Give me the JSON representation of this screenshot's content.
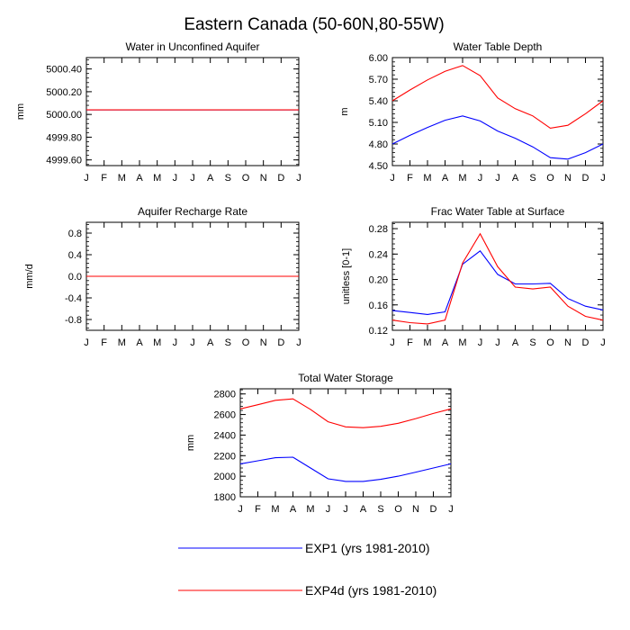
{
  "figure": {
    "title": "Eastern Canada (50-60N,80-55W)"
  },
  "colors": {
    "exp1": "#0000ff",
    "exp4d": "#ff0000"
  },
  "legend": [
    {
      "label": "EXP1 (yrs 1981-2010)",
      "color": "#0000ff"
    },
    {
      "label": "EXP4d (yrs 1981-2010)",
      "color": "#ff0000"
    }
  ],
  "chart_data": [
    {
      "type": "line",
      "title": "Water in Unconfined Aquifer",
      "ylabel": "mm",
      "ylim": [
        4999.55,
        5000.5
      ],
      "yticks": [
        5000.4,
        5000.2,
        5000.0,
        4999.8,
        4999.6
      ],
      "ytick_labels": [
        "5000.40",
        "5000.20",
        "5000.00",
        "4999.80",
        "4999.60"
      ],
      "x_labels": [
        "J",
        "F",
        "M",
        "A",
        "M",
        "J",
        "J",
        "A",
        "S",
        "O",
        "N",
        "D",
        "J"
      ],
      "series": [
        {
          "name": "EXP1 (yrs 1981-2010)",
          "values": [
            5000.04,
            5000.04,
            5000.04,
            5000.04,
            5000.04,
            5000.04,
            5000.04,
            5000.04,
            5000.04,
            5000.04,
            5000.04,
            5000.04,
            5000.04
          ]
        },
        {
          "name": "EXP4d (yrs 1981-2010)",
          "values": [
            5000.04,
            5000.04,
            5000.04,
            5000.04,
            5000.04,
            5000.04,
            5000.04,
            5000.04,
            5000.04,
            5000.04,
            5000.04,
            5000.04,
            5000.04
          ]
        }
      ]
    },
    {
      "type": "line",
      "title": "Water Table Depth",
      "ylabel": "m",
      "ylim": [
        4.5,
        6.0
      ],
      "yticks": [
        6.0,
        5.7,
        5.4,
        5.1,
        4.8,
        4.5
      ],
      "ytick_labels": [
        "6.00",
        "5.70",
        "5.40",
        "5.10",
        "4.80",
        "4.50"
      ],
      "x_labels": [
        "J",
        "F",
        "M",
        "A",
        "M",
        "J",
        "J",
        "A",
        "S",
        "O",
        "N",
        "D",
        "J"
      ],
      "series": [
        {
          "name": "EXP1 (yrs 1981-2010)",
          "values": [
            4.8,
            4.92,
            5.03,
            5.13,
            5.19,
            5.12,
            4.98,
            4.88,
            4.76,
            4.61,
            4.59,
            4.68,
            4.8
          ]
        },
        {
          "name": "EXP4d (yrs 1981-2010)",
          "values": [
            5.4,
            5.55,
            5.69,
            5.81,
            5.89,
            5.75,
            5.44,
            5.29,
            5.19,
            5.02,
            5.06,
            5.22,
            5.4
          ]
        }
      ]
    },
    {
      "type": "line",
      "title": "Aquifer Recharge Rate",
      "ylabel": "mm/d",
      "ylim": [
        -1.0,
        1.0
      ],
      "yticks": [
        0.8,
        0.4,
        0.0,
        -0.4,
        -0.8
      ],
      "ytick_labels": [
        "0.8",
        "0.4",
        "0.0",
        "-0.4",
        "-0.8"
      ],
      "x_labels": [
        "J",
        "F",
        "M",
        "A",
        "M",
        "J",
        "J",
        "A",
        "S",
        "O",
        "N",
        "D",
        "J"
      ],
      "series": [
        {
          "name": "EXP1 (yrs 1981-2010)",
          "values": [
            0,
            0,
            0,
            0,
            0,
            0,
            0,
            0,
            0,
            0,
            0,
            0,
            0
          ]
        },
        {
          "name": "EXP4d (yrs 1981-2010)",
          "values": [
            0,
            0,
            0,
            0,
            0,
            0,
            0,
            0,
            0,
            0,
            0,
            0,
            0
          ]
        }
      ]
    },
    {
      "type": "line",
      "title": "Frac Water Table at Surface",
      "ylabel": "unitless [0-1]",
      "ylim": [
        0.12,
        0.29
      ],
      "yticks": [
        0.28,
        0.24,
        0.2,
        0.16,
        0.12
      ],
      "ytick_labels": [
        "0.28",
        "0.24",
        "0.20",
        "0.16",
        "0.12"
      ],
      "x_labels": [
        "J",
        "F",
        "M",
        "A",
        "M",
        "J",
        "J",
        "A",
        "S",
        "O",
        "N",
        "D",
        "J"
      ],
      "series": [
        {
          "name": "EXP1 (yrs 1981-2010)",
          "values": [
            0.151,
            0.148,
            0.145,
            0.149,
            0.224,
            0.245,
            0.208,
            0.193,
            0.193,
            0.194,
            0.17,
            0.158,
            0.152
          ]
        },
        {
          "name": "EXP4d (yrs 1981-2010)",
          "values": [
            0.136,
            0.132,
            0.13,
            0.136,
            0.226,
            0.272,
            0.22,
            0.188,
            0.185,
            0.188,
            0.158,
            0.142,
            0.136
          ]
        }
      ]
    },
    {
      "type": "line",
      "title": "Total Water Storage",
      "ylabel": "mm",
      "ylim": [
        1800,
        2850
      ],
      "yticks": [
        2800,
        2600,
        2400,
        2200,
        2000,
        1800
      ],
      "ytick_labels": [
        "2800",
        "2600",
        "2400",
        "2200",
        "2000",
        "1800"
      ],
      "x_labels": [
        "J",
        "F",
        "M",
        "A",
        "M",
        "J",
        "J",
        "A",
        "S",
        "O",
        "N",
        "D",
        "J"
      ],
      "series": [
        {
          "name": "EXP1 (yrs 1981-2010)",
          "values": [
            2120,
            2150,
            2180,
            2185,
            2080,
            1975,
            1950,
            1950,
            1970,
            2000,
            2040,
            2080,
            2120
          ]
        },
        {
          "name": "EXP4d (yrs 1981-2010)",
          "values": [
            2655,
            2695,
            2738,
            2752,
            2650,
            2530,
            2480,
            2472,
            2485,
            2515,
            2560,
            2610,
            2655
          ]
        }
      ]
    }
  ]
}
